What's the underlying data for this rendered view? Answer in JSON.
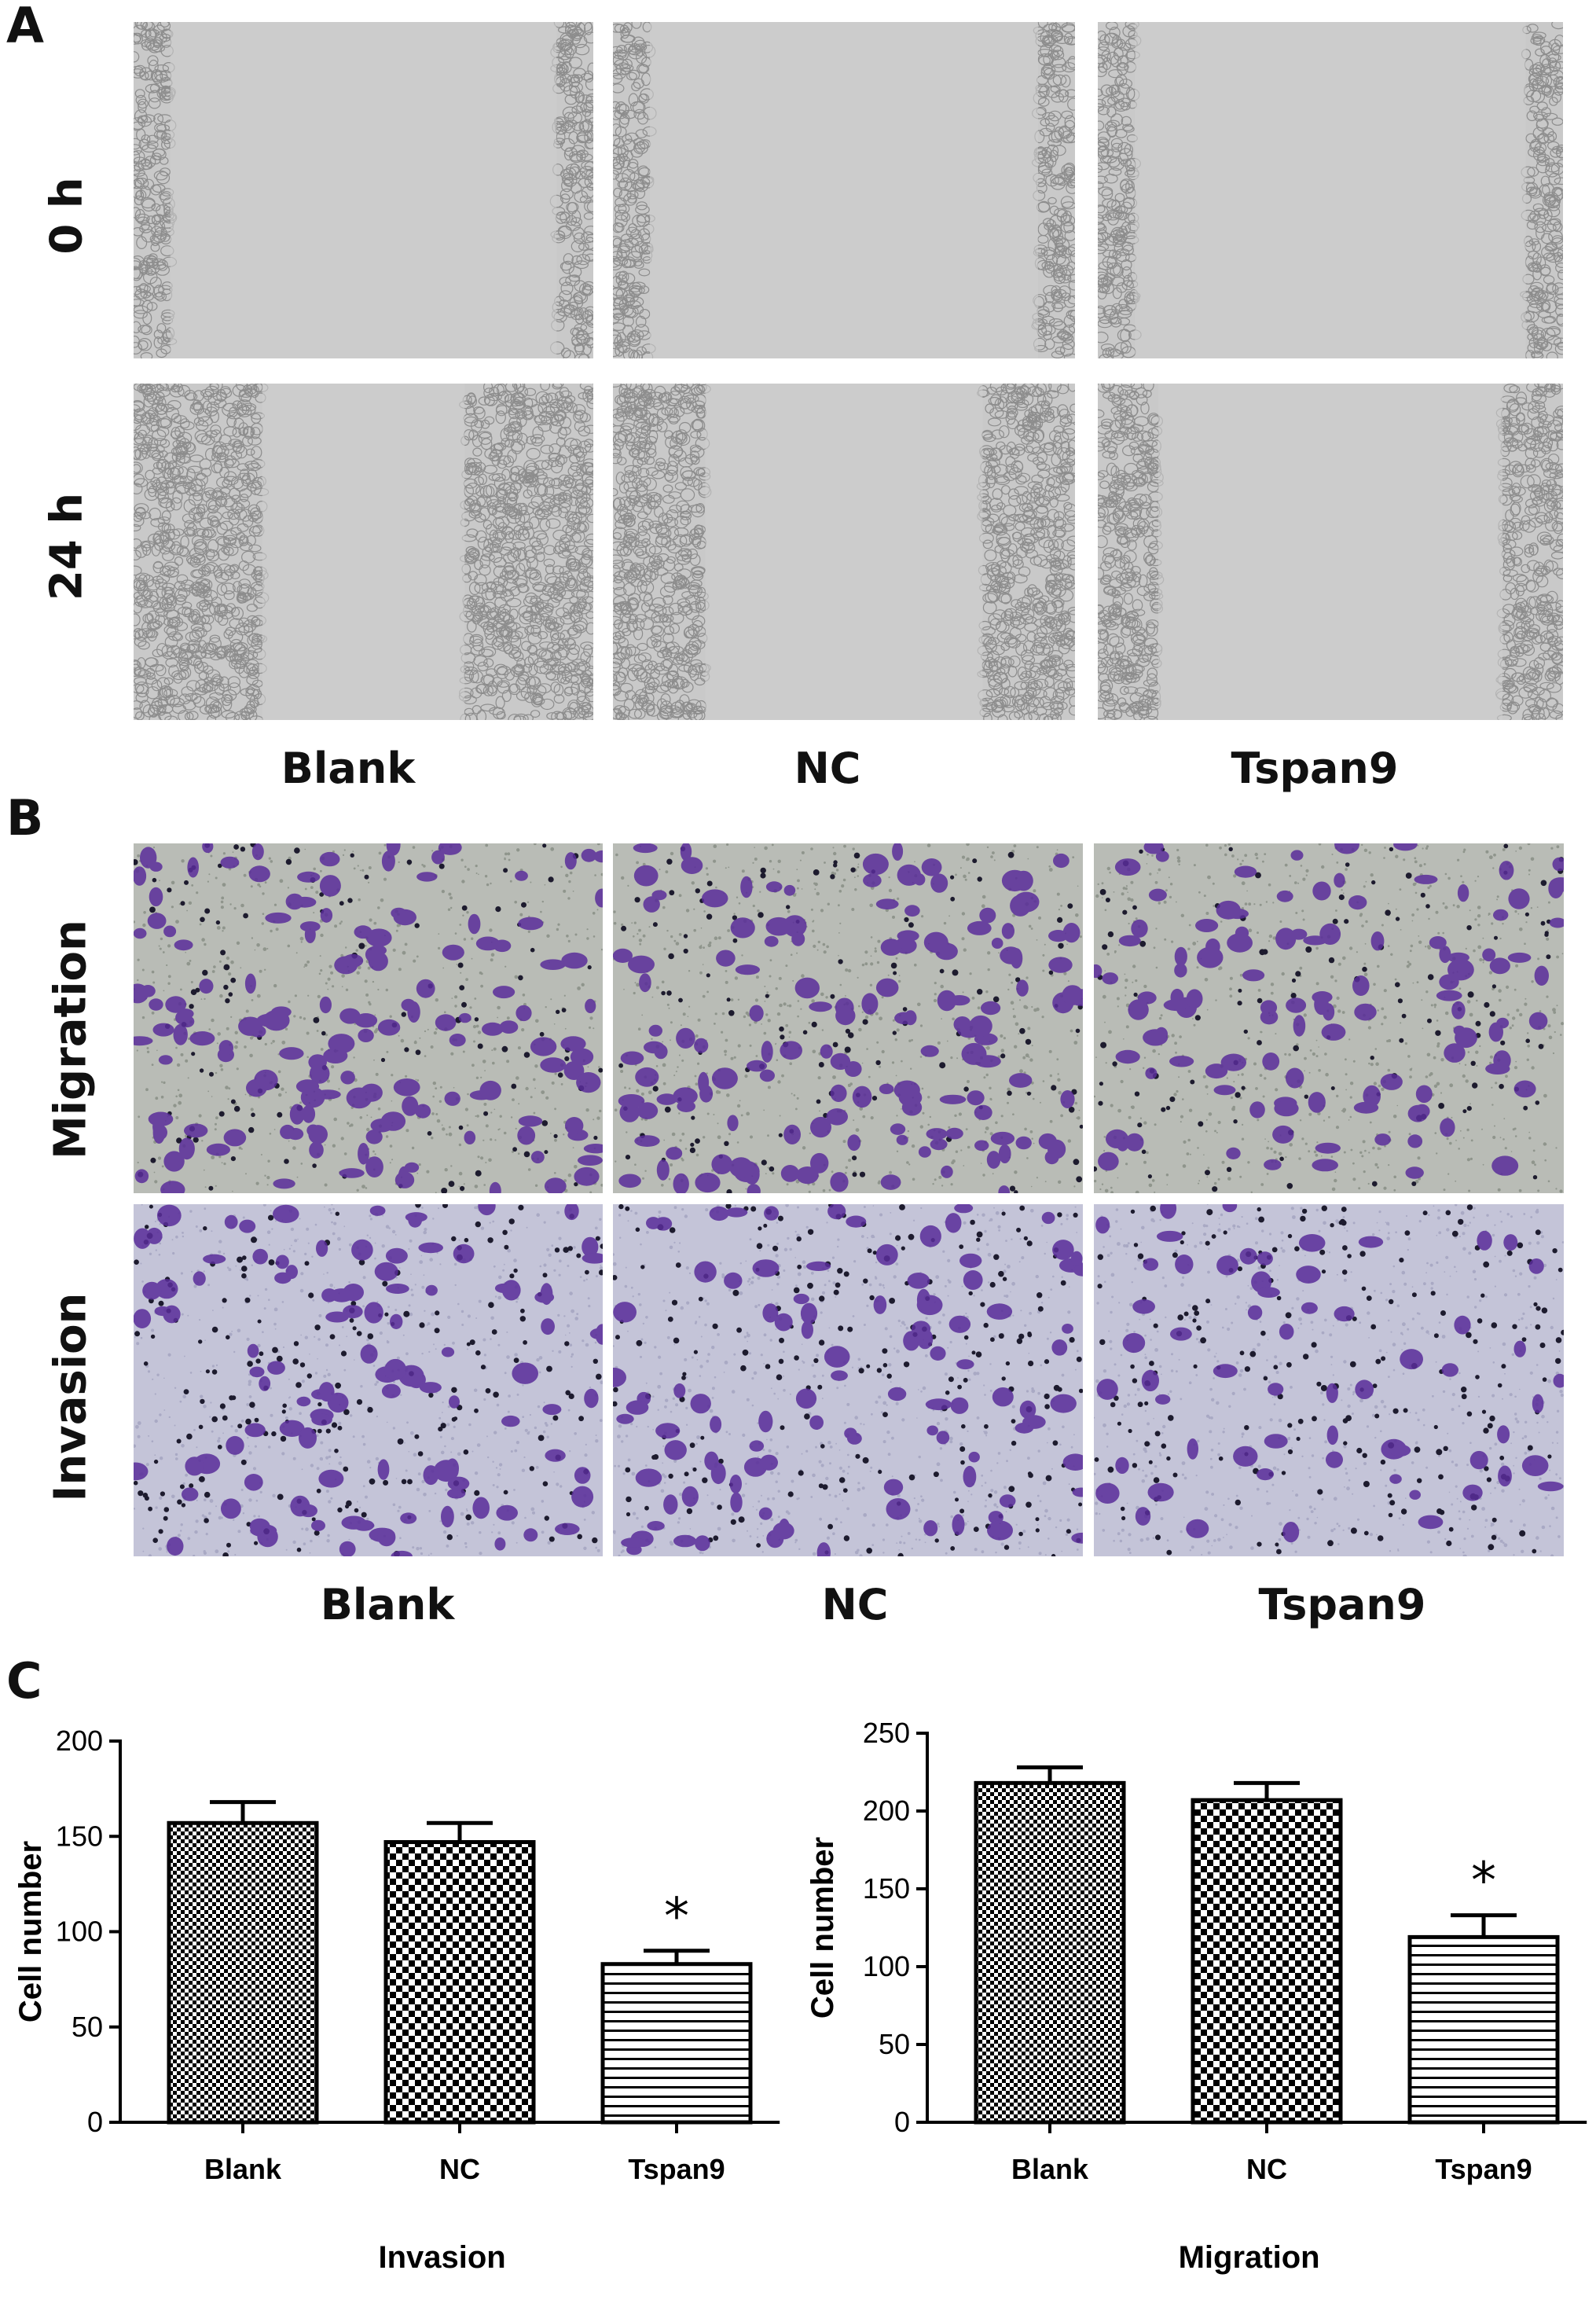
{
  "panels": {
    "a": "A",
    "b": "B",
    "c": "C"
  },
  "panel_a": {
    "rows": [
      "0 h",
      "24 h"
    ],
    "cols": [
      "Blank",
      "NC",
      "Tspan9"
    ]
  },
  "panel_b": {
    "rows": [
      "Migration",
      "Invasion"
    ],
    "cols": [
      "Blank",
      "NC",
      "Tspan9"
    ]
  },
  "colors": {
    "scratch_bg": "#c9c9c9",
    "migration_bg": "#b9bcb6",
    "invasion_bg": "#c4c4d8",
    "stain": "#5a2d9a",
    "stain_dark": "#2a1a5a"
  },
  "chart_data": [
    {
      "type": "bar",
      "categories": [
        "Blank",
        "NC",
        "Tspan9"
      ],
      "values": [
        157,
        147,
        83
      ],
      "errors": [
        11,
        10,
        7
      ],
      "significance": [
        "",
        "",
        "*"
      ],
      "patterns": [
        "checker-small",
        "checker-large",
        "horizontal-lines"
      ],
      "xlabel": "Invasion",
      "ylabel": "Cell number",
      "ylim": [
        0,
        200
      ],
      "yticks": [
        0,
        50,
        100,
        150,
        200
      ]
    },
    {
      "type": "bar",
      "categories": [
        "Blank",
        "NC",
        "Tspan9"
      ],
      "values": [
        218,
        207,
        119
      ],
      "errors": [
        10,
        11,
        14
      ],
      "significance": [
        "",
        "",
        "*"
      ],
      "patterns": [
        "checker-small",
        "checker-large",
        "horizontal-lines"
      ],
      "xlabel": "Migration",
      "ylabel": "Cell number",
      "ylim": [
        0,
        250
      ],
      "yticks": [
        0,
        50,
        100,
        150,
        200,
        250
      ]
    }
  ]
}
